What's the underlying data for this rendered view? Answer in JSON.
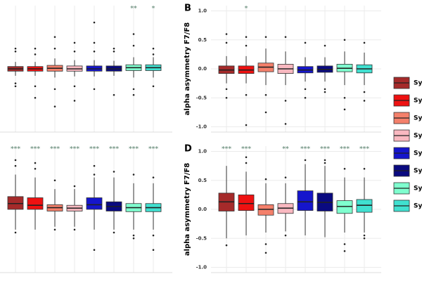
{
  "chart_data": [
    {
      "type": "box",
      "ylim": [
        -1,
        1
      ],
      "boxes": [
        {
          "low": -0.12,
          "q1": -0.04,
          "median": 0,
          "q3": 0.04,
          "high": 0.12,
          "outliers": [
            0.35,
            0.3,
            -0.25,
            -0.3
          ],
          "annotation": null
        },
        {
          "low": -0.12,
          "q1": -0.04,
          "median": 0,
          "q3": 0.04,
          "high": 0.12,
          "outliers": [
            0.35,
            0.25,
            -0.3,
            -0.5
          ],
          "annotation": null
        },
        {
          "low": -0.15,
          "q1": -0.04,
          "median": 0.01,
          "q3": 0.06,
          "high": 0.18,
          "outliers": [
            0.55,
            0.35,
            -0.35,
            -0.65
          ],
          "annotation": null
        },
        {
          "low": -0.13,
          "q1": -0.04,
          "median": 0,
          "q3": 0.05,
          "high": 0.15,
          "outliers": [
            0.45,
            0.3,
            -0.3,
            -0.55
          ],
          "annotation": null
        },
        {
          "low": -0.13,
          "q1": -0.04,
          "median": 0,
          "q3": 0.05,
          "high": 0.15,
          "outliers": [
            0.8,
            0.45,
            0.3,
            -0.35
          ],
          "annotation": null
        },
        {
          "low": -0.12,
          "q1": -0.04,
          "median": 0,
          "q3": 0.05,
          "high": 0.14,
          "outliers": [
            0.35,
            0.3,
            -0.45
          ],
          "annotation": null
        },
        {
          "low": -0.15,
          "q1": -0.03,
          "median": 0.02,
          "q3": 0.07,
          "high": 0.2,
          "outliers": [
            0.6,
            0.4,
            -0.35,
            -0.45
          ],
          "annotation": "**"
        },
        {
          "low": -0.15,
          "q1": -0.03,
          "median": 0.02,
          "q3": 0.07,
          "high": 0.2,
          "outliers": [
            0.35,
            0.25,
            -0.3
          ],
          "annotation": "*"
        }
      ]
    },
    {
      "type": "box",
      "panel_label": "B",
      "ylabel": "alpha asymmetry F7/F8",
      "ylim": [
        -1,
        1
      ],
      "yticks": [
        {
          "value": -1,
          "label": "-1.0"
        },
        {
          "value": -0.5,
          "label": "-0.5"
        },
        {
          "value": 0,
          "label": "0.0"
        },
        {
          "value": 0.5,
          "label": "0.5"
        },
        {
          "value": 1,
          "label": "1.0"
        }
      ],
      "boxes": [
        {
          "low": -0.25,
          "q1": -0.08,
          "median": -0.02,
          "q3": 0.05,
          "high": 0.22,
          "outliers": [
            0.6,
            0.45,
            -0.35,
            -0.5
          ],
          "annotation": null
        },
        {
          "low": -0.25,
          "q1": -0.08,
          "median": -0.02,
          "q3": 0.05,
          "high": 0.22,
          "outliers": [
            0.55,
            0.4,
            -0.45,
            -0.97
          ],
          "annotation": "*"
        },
        {
          "low": -0.28,
          "q1": -0.05,
          "median": 0.03,
          "q3": 0.1,
          "high": 0.35,
          "outliers": [
            0.55,
            -0.45,
            -0.75
          ],
          "annotation": null
        },
        {
          "low": -0.28,
          "q1": -0.08,
          "median": 0,
          "q3": 0.08,
          "high": 0.3,
          "outliers": [
            0.55,
            -0.55,
            -0.95
          ],
          "annotation": null
        },
        {
          "low": -0.22,
          "q1": -0.07,
          "median": -0.02,
          "q3": 0.04,
          "high": 0.2,
          "outliers": [
            0.45,
            -0.35,
            -0.5
          ],
          "annotation": null
        },
        {
          "low": -0.22,
          "q1": -0.06,
          "median": -0.01,
          "q3": 0.05,
          "high": 0.2,
          "outliers": [
            0.4,
            -0.35,
            -0.4
          ],
          "annotation": null
        },
        {
          "low": -0.28,
          "q1": -0.05,
          "median": 0.01,
          "q3": 0.08,
          "high": 0.3,
          "outliers": [
            0.5,
            -0.5,
            -0.7
          ],
          "annotation": null
        },
        {
          "low": -0.28,
          "q1": -0.07,
          "median": 0,
          "q3": 0.07,
          "high": 0.28,
          "outliers": [
            0.45,
            -0.4,
            -0.55
          ],
          "annotation": null
        }
      ]
    },
    {
      "type": "box",
      "ylim": [
        -1,
        1
      ],
      "boxes": [
        {
          "low": -0.35,
          "q1": 0,
          "median": 0.1,
          "q3": 0.22,
          "high": 0.6,
          "outliers": [
            0.85,
            0.75,
            -0.4
          ],
          "annotation": "***"
        },
        {
          "low": -0.35,
          "q1": 0,
          "median": 0.07,
          "q3": 0.2,
          "high": 0.55,
          "outliers": [
            0.8,
            0.7
          ],
          "annotation": "***"
        },
        {
          "low": -0.3,
          "q1": -0.03,
          "median": 0.03,
          "q3": 0.08,
          "high": 0.35,
          "outliers": [
            0.5,
            -0.35
          ],
          "annotation": "***"
        },
        {
          "low": -0.3,
          "q1": -0.03,
          "median": 0.02,
          "q3": 0.07,
          "high": 0.35,
          "outliers": [
            0.4,
            -0.35
          ],
          "annotation": "***"
        },
        {
          "low": -0.35,
          "q1": 0,
          "median": 0.08,
          "q3": 0.2,
          "high": 0.55,
          "outliers": [
            0.75,
            0.6,
            -0.7
          ],
          "annotation": "***"
        },
        {
          "low": -0.35,
          "q1": -0.03,
          "median": 0.05,
          "q3": 0.13,
          "high": 0.55,
          "outliers": [
            0.65,
            -0.4
          ],
          "annotation": "***"
        },
        {
          "low": -0.35,
          "q1": -0.04,
          "median": 0.03,
          "q3": 0.1,
          "high": 0.45,
          "outliers": [
            0.6,
            -0.45,
            -0.5
          ],
          "annotation": "***"
        },
        {
          "low": -0.35,
          "q1": -0.04,
          "median": 0.03,
          "q3": 0.1,
          "high": 0.45,
          "outliers": [
            0.55,
            -0.45,
            -0.7
          ],
          "annotation": "***"
        }
      ]
    },
    {
      "type": "box",
      "panel_label": "D",
      "ylabel": "alpha asymmetry F7/F8",
      "ylim": [
        -1,
        1
      ],
      "yticks": [
        {
          "value": -1,
          "label": "-1.0"
        },
        {
          "value": -0.5,
          "label": "-0.5"
        },
        {
          "value": 0,
          "label": "0.0"
        },
        {
          "value": 0.5,
          "label": "0.5"
        },
        {
          "value": 1,
          "label": "1.0"
        }
      ],
      "boxes": [
        {
          "low": -0.5,
          "q1": -0.03,
          "median": 0.13,
          "q3": 0.28,
          "high": 0.75,
          "outliers": [
            -0.62
          ],
          "annotation": "***"
        },
        {
          "low": -0.45,
          "q1": -0.02,
          "median": 0.1,
          "q3": 0.25,
          "high": 0.65,
          "outliers": [
            0.9,
            0.8
          ],
          "annotation": "***"
        },
        {
          "low": -0.4,
          "q1": -0.1,
          "median": 0,
          "q3": 0.08,
          "high": 0.45,
          "outliers": [
            0.52,
            -0.6,
            -0.75
          ],
          "annotation": null
        },
        {
          "low": -0.38,
          "q1": -0.07,
          "median": 0.02,
          "q3": 0.1,
          "high": 0.45,
          "outliers": [
            0.55,
            -0.45
          ],
          "annotation": "**"
        },
        {
          "low": -0.45,
          "q1": -0.02,
          "median": 0.13,
          "q3": 0.32,
          "high": 0.78,
          "outliers": [
            0.85
          ],
          "annotation": "***"
        },
        {
          "low": -0.48,
          "q1": -0.03,
          "median": 0.12,
          "q3": 0.28,
          "high": 0.75,
          "outliers": [
            0.85,
            0.8
          ],
          "annotation": "***"
        },
        {
          "low": -0.4,
          "q1": -0.07,
          "median": 0.05,
          "q3": 0.15,
          "high": 0.55,
          "outliers": [
            0.7,
            -0.6,
            -0.72
          ],
          "annotation": "***"
        },
        {
          "low": -0.4,
          "q1": -0.05,
          "median": 0.07,
          "q3": 0.17,
          "high": 0.55,
          "outliers": [
            0.7,
            -0.45,
            -0.5
          ],
          "annotation": "***"
        }
      ]
    }
  ],
  "legend": [
    {
      "name": "Sy",
      "color": "#a52a2a"
    },
    {
      "name": "Sy",
      "color": "#ee1111"
    },
    {
      "name": "Sy",
      "color": "#f4806b"
    },
    {
      "name": "Sy",
      "color": "#f9b8c0"
    },
    {
      "name": "Sy",
      "color": "#1515cc"
    },
    {
      "name": "Sy",
      "color": "#0a0a80"
    },
    {
      "name": "Sy",
      "color": "#7fffcf"
    },
    {
      "name": "Sy",
      "color": "#40e0d0"
    }
  ]
}
